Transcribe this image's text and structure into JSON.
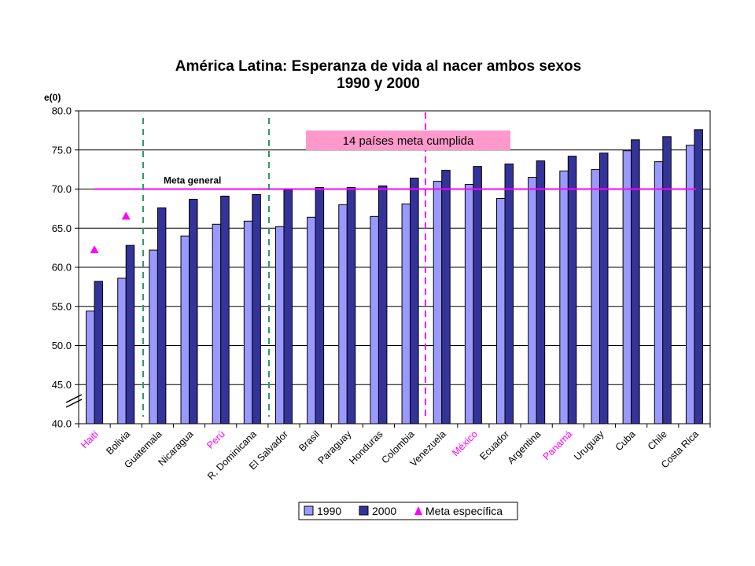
{
  "chart_data": {
    "type": "bar",
    "title": [
      "América Latina: Esperanza de vida al nacer ambos sexos",
      "1990 y 2000"
    ],
    "ylabel": "e(0)",
    "ylim": [
      40,
      80
    ],
    "yticks": [
      "40.0",
      "45.0",
      "50.0",
      "55.0",
      "60.0",
      "65.0",
      "70.0",
      "75.0",
      "80.0"
    ],
    "ytick_values": [
      40,
      45,
      50,
      55,
      60,
      65,
      70,
      75,
      80
    ],
    "grid": true,
    "legend_position": "bottom",
    "categories": [
      "Haití",
      "Bolivia",
      "Guatemala",
      "Nicaragua",
      "Perú",
      "R. Dominicana",
      "El Salvador",
      "Brasil",
      "Paraguay",
      "Honduras",
      "Colombia",
      "Venezuela",
      "México",
      "Ecuador",
      "Argentina",
      "Panamá",
      "Uruguay",
      "Cuba",
      "Chile",
      "Costa Rica"
    ],
    "highlighted_categories": [
      "Haití",
      "Perú",
      "México",
      "Panamá"
    ],
    "series": [
      {
        "name": "1990",
        "color": "#9999FF",
        "values": [
          54.4,
          58.6,
          62.2,
          64.0,
          65.5,
          65.9,
          65.2,
          66.4,
          68.0,
          66.5,
          68.1,
          71.0,
          70.6,
          68.8,
          71.5,
          72.3,
          72.5,
          74.9,
          73.5,
          75.6
        ]
      },
      {
        "name": "2000",
        "color": "#333399",
        "values": [
          58.2,
          62.8,
          67.6,
          68.7,
          69.1,
          69.3,
          69.9,
          70.2,
          70.2,
          70.4,
          71.4,
          72.4,
          72.9,
          73.2,
          73.6,
          74.2,
          74.6,
          76.3,
          76.7,
          77.6
        ]
      },
      {
        "name": "Meta específica",
        "color": "#FF00FF",
        "marker": "triangle",
        "points": [
          {
            "category": "Haití",
            "value": 62.3
          },
          {
            "category": "Bolivia",
            "value": 66.6
          }
        ]
      }
    ],
    "reference_line": {
      "label": "Meta general",
      "value": 70.0,
      "color": "#FF00FF"
    },
    "annotation": {
      "text": "14 países meta cumplida",
      "color": "#FF99CC"
    }
  }
}
